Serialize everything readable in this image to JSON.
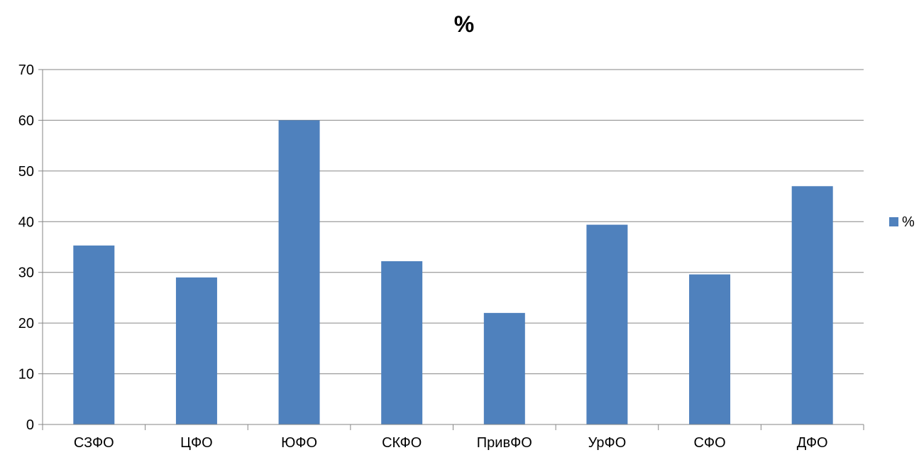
{
  "chart_data": {
    "type": "bar",
    "title": "%",
    "categories": [
      "СЗФО",
      "ЦФО",
      "ЮФО",
      "СКФО",
      "ПривФО",
      "УрФО",
      "СФО",
      "ДФО"
    ],
    "series": [
      {
        "name": "%",
        "values": [
          35.3,
          29.0,
          60.0,
          32.2,
          22.0,
          39.4,
          29.6,
          47.0
        ]
      }
    ],
    "ylim": [
      0,
      70
    ],
    "yticks": [
      0,
      10,
      20,
      30,
      40,
      50,
      60,
      70
    ],
    "grid": true,
    "legend": "right",
    "colors": {
      "bar": "#4f81bd",
      "grid": "#868686",
      "axis": "#868686"
    }
  }
}
